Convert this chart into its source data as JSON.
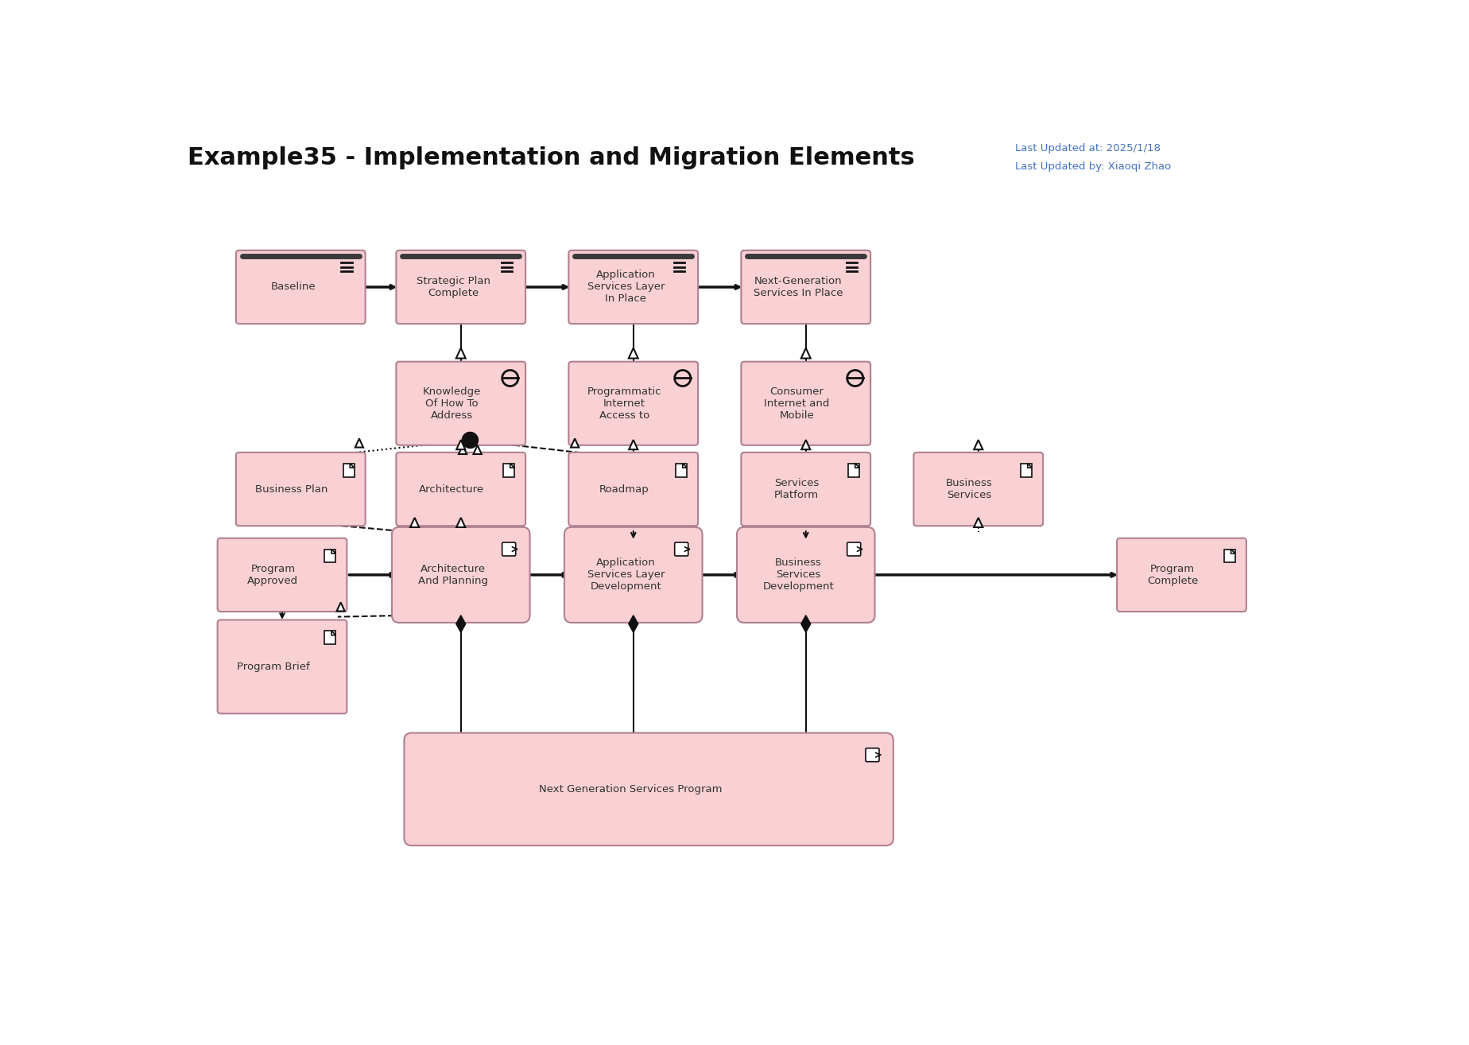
{
  "title": "Example35 - Implementation and Migration Elements",
  "title_fontsize": 22,
  "subtitle1": "Last Updated at: 2025/1/18",
  "subtitle2": "Last Updated by: Xiaoqi Zhao",
  "subtitle_color": "#4472C4",
  "bg_color": "#FFFFFF",
  "box_fill": "#F9D0D4",
  "box_edge": "#B08090",
  "text_color": "#8B4040",
  "figsize": [
    18.48,
    13.14
  ],
  "dpi": 100,
  "cols": [
    1.9,
    4.5,
    7.3,
    10.1,
    12.9,
    16.2
  ],
  "rows": [
    10.5,
    8.6,
    7.2,
    5.8,
    4.3,
    2.3
  ],
  "bw": 2.0,
  "bh": 1.1
}
